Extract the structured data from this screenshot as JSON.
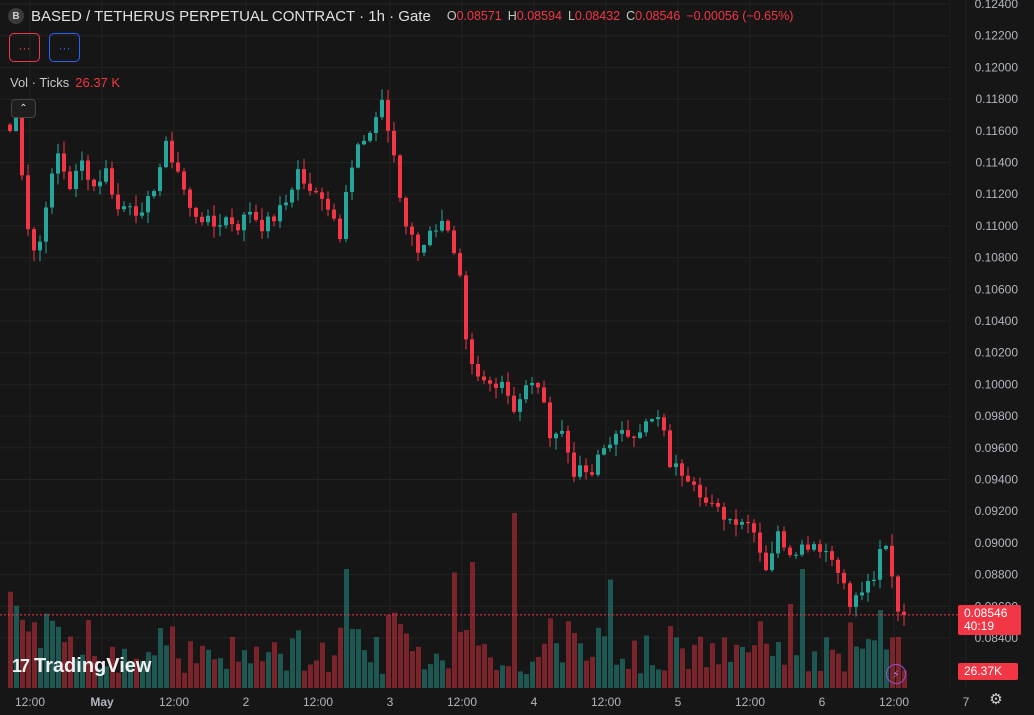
{
  "header": {
    "symbol_icon": "B",
    "title": "BASED / TETHERUS PERPETUAL CONTRACT · 1h · Gate",
    "ohlc": [
      {
        "key": "O",
        "value": "0.08571"
      },
      {
        "key": "H",
        "value": "0.08594"
      },
      {
        "key": "L",
        "value": "0.08432"
      },
      {
        "key": "C",
        "value": "0.08546"
      }
    ],
    "change": "−0.00056 (−0.65%)"
  },
  "toolbar": {
    "btn1_label": "···",
    "btn2_label": "···"
  },
  "volume_legend": {
    "label": "Vol · Ticks",
    "value": "26.37 K"
  },
  "price_tag": {
    "price": "0.08546",
    "countdown": "40:19"
  },
  "volume_tag": {
    "value": "26.37K"
  },
  "logo": {
    "mark": "17",
    "text": "TradingView"
  },
  "colors": {
    "up": "#26a69a",
    "down": "#f23645",
    "background": "#161616",
    "grid": "#222222"
  },
  "chart_data": {
    "type": "candlestick",
    "y_axis": {
      "min": 0.0834,
      "max": 0.1242,
      "tick_labels": [
        "0.12400",
        "0.12200",
        "0.12000",
        "0.11800",
        "0.11600",
        "0.11400",
        "0.11200",
        "0.11000",
        "0.10800",
        "0.10600",
        "0.10400",
        "0.10200",
        "0.10000",
        "0.09800",
        "0.09600",
        "0.09400",
        "0.09200",
        "0.09000",
        "0.08800",
        "0.08600",
        "0.08400"
      ]
    },
    "x_axis": {
      "tick_labels": [
        {
          "label": "12:00",
          "index": 2
        },
        {
          "label": "May",
          "index": 14
        },
        {
          "label": "12:00",
          "index": 26
        },
        {
          "label": "2",
          "index": 38
        },
        {
          "label": "12:00",
          "index": 50
        },
        {
          "label": "3",
          "index": 62
        },
        {
          "label": "12:00",
          "index": 74
        },
        {
          "label": "4",
          "index": 86
        },
        {
          "label": "12:00",
          "index": 98
        },
        {
          "label": "5",
          "index": 110
        },
        {
          "label": "12:00",
          "index": 122
        },
        {
          "label": "6",
          "index": 134
        },
        {
          "label": "12:00",
          "index": 146
        },
        {
          "label": "7",
          "index": 158
        }
      ]
    },
    "last_price": 0.08546,
    "series_start_index": 0,
    "anchors": [
      [
        0,
        0.116
      ],
      [
        1,
        0.1175
      ],
      [
        2,
        0.1135
      ],
      [
        3,
        0.11
      ],
      [
        4,
        0.1085
      ],
      [
        5,
        0.109
      ],
      [
        6,
        0.1115
      ],
      [
        7,
        0.113
      ],
      [
        8,
        0.1145
      ],
      [
        10,
        0.1125
      ],
      [
        12,
        0.114
      ],
      [
        14,
        0.1125
      ],
      [
        16,
        0.1135
      ],
      [
        18,
        0.111
      ],
      [
        20,
        0.1115
      ],
      [
        22,
        0.1105
      ],
      [
        24,
        0.1125
      ],
      [
        26,
        0.115
      ],
      [
        28,
        0.1135
      ],
      [
        30,
        0.111
      ],
      [
        32,
        0.1105
      ],
      [
        34,
        0.11
      ],
      [
        36,
        0.1105
      ],
      [
        38,
        0.11
      ],
      [
        40,
        0.111
      ],
      [
        42,
        0.11
      ],
      [
        44,
        0.1105
      ],
      [
        46,
        0.1115
      ],
      [
        48,
        0.1135
      ],
      [
        50,
        0.112
      ],
      [
        52,
        0.112
      ],
      [
        54,
        0.1105
      ],
      [
        55,
        0.1095
      ],
      [
        56,
        0.1125
      ],
      [
        58,
        0.115
      ],
      [
        60,
        0.1155
      ],
      [
        61,
        0.117
      ],
      [
        62,
        0.118
      ],
      [
        63,
        0.116
      ],
      [
        64,
        0.1145
      ],
      [
        65,
        0.1115
      ],
      [
        66,
        0.11
      ],
      [
        67,
        0.1095
      ],
      [
        68,
        0.1085
      ],
      [
        70,
        0.1095
      ],
      [
        72,
        0.1105
      ],
      [
        73,
        0.1095
      ],
      [
        74,
        0.108
      ],
      [
        75,
        0.1065
      ],
      [
        76,
        0.1025
      ],
      [
        77,
        0.101
      ],
      [
        78,
        0.1003
      ],
      [
        80,
        0.1
      ],
      [
        82,
        0.1003
      ],
      [
        84,
        0.0985
      ],
      [
        86,
        0.0998
      ],
      [
        88,
        0.1
      ],
      [
        89,
        0.0985
      ],
      [
        90,
        0.097
      ],
      [
        92,
        0.097
      ],
      [
        94,
        0.0945
      ],
      [
        96,
        0.0945
      ],
      [
        97,
        0.094
      ],
      [
        98,
        0.0955
      ],
      [
        100,
        0.0965
      ],
      [
        102,
        0.0968
      ],
      [
        104,
        0.097
      ],
      [
        106,
        0.0975
      ],
      [
        108,
        0.0978
      ],
      [
        109,
        0.0968
      ],
      [
        110,
        0.095
      ],
      [
        112,
        0.0945
      ],
      [
        114,
        0.094
      ],
      [
        116,
        0.0925
      ],
      [
        118,
        0.092
      ],
      [
        120,
        0.0915
      ],
      [
        122,
        0.0915
      ],
      [
        124,
        0.091
      ],
      [
        125,
        0.0895
      ],
      [
        126,
        0.0885
      ],
      [
        128,
        0.0905
      ],
      [
        130,
        0.0895
      ],
      [
        132,
        0.0898
      ],
      [
        134,
        0.09
      ],
      [
        136,
        0.0895
      ],
      [
        138,
        0.0885
      ],
      [
        140,
        0.086
      ],
      [
        142,
        0.087
      ],
      [
        144,
        0.0875
      ],
      [
        145,
        0.0895
      ],
      [
        146,
        0.09
      ],
      [
        147,
        0.088
      ],
      [
        148,
        0.086
      ],
      [
        149,
        0.0855
      ]
    ],
    "notable_volume_spikes": [
      [
        84,
        1.0
      ],
      [
        77,
        0.72
      ],
      [
        100,
        0.62
      ],
      [
        74,
        0.66
      ],
      [
        56,
        0.68
      ],
      [
        132,
        0.68
      ],
      [
        130,
        0.48
      ]
    ]
  }
}
